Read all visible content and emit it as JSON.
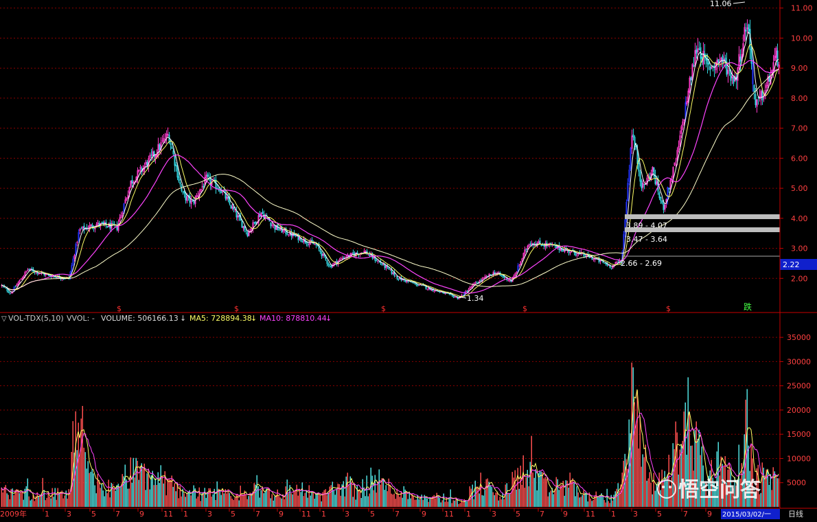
{
  "colors": {
    "background": "#000000",
    "grid": "#8a0000",
    "axis": "#c80000",
    "up": "#ff3ccc",
    "down": "#33d5e0",
    "limit": "#2233ff",
    "ma5": "#ffffff",
    "ma10": "#ffff66",
    "ma20": "#ff44ff",
    "ma60": "#ffffcc",
    "vol_up": "#ff5050",
    "vol_down": "#50e0e0",
    "tick_text": "#ff4040"
  },
  "chart_data": [
    {
      "type": "candlestick",
      "y_ticks": [
        "11.00",
        "10.00",
        "9.00",
        "8.00",
        "7.00",
        "6.00",
        "5.00",
        "4.00",
        "3.00",
        "2.00"
      ],
      "ylim": [
        1,
        11.2
      ],
      "anchors": [
        [
          0,
          1.8
        ],
        [
          15,
          1.5
        ],
        [
          40,
          2.3
        ],
        [
          70,
          2.1
        ],
        [
          100,
          2.0
        ],
        [
          115,
          3.6
        ],
        [
          140,
          3.8
        ],
        [
          170,
          3.7
        ],
        [
          190,
          5.2
        ],
        [
          220,
          6.0
        ],
        [
          245,
          6.8
        ],
        [
          265,
          4.8
        ],
        [
          280,
          4.5
        ],
        [
          300,
          5.3
        ],
        [
          320,
          5.0
        ],
        [
          360,
          3.5
        ],
        [
          380,
          4.2
        ],
        [
          400,
          3.7
        ],
        [
          440,
          3.3
        ],
        [
          460,
          3.1
        ],
        [
          480,
          2.4
        ],
        [
          500,
          2.7
        ],
        [
          530,
          2.9
        ],
        [
          560,
          2.4
        ],
        [
          580,
          2.0
        ],
        [
          620,
          1.7
        ],
        [
          668,
          1.34
        ],
        [
          690,
          1.8
        ],
        [
          720,
          2.2
        ],
        [
          745,
          1.9
        ],
        [
          770,
          3.2
        ],
        [
          800,
          3.1
        ],
        [
          830,
          2.9
        ],
        [
          860,
          2.7
        ],
        [
          890,
          2.4
        ],
        [
          905,
          2.6
        ],
        [
          920,
          6.9
        ],
        [
          935,
          5.0
        ],
        [
          950,
          5.6
        ],
        [
          965,
          4.3
        ],
        [
          985,
          6.0
        ],
        [
          1000,
          8.0
        ],
        [
          1015,
          9.8
        ],
        [
          1030,
          9.0
        ],
        [
          1050,
          9.3
        ],
        [
          1070,
          8.6
        ],
        [
          1088,
          10.6
        ],
        [
          1100,
          7.7
        ],
        [
          1115,
          8.3
        ],
        [
          1130,
          9.4
        ],
        [
          1136,
          9.2
        ]
      ],
      "max_label": "11.06",
      "min_label": "1.34",
      "current_price_label": "2.22",
      "band_labels": [
        "3.89 - 4.07",
        "3.47 - 3.64",
        "2.66 - 2.69"
      ],
      "signal_marks": [
        "$",
        "$",
        "$",
        "$",
        "$"
      ],
      "fall_mark": "跌"
    },
    {
      "type": "bar",
      "indicator": "VOL-TDX(5,10)",
      "vvol_label": "VVOL: -",
      "volume_label": "VOLUME: 506166.13",
      "ma5_label": "MA5: 728894.38",
      "ma10_label": "MA10: 878810.44",
      "y_ticks": [
        "35000",
        "30000",
        "25000",
        "20000",
        "15000",
        "10000",
        "5000"
      ],
      "ylim": [
        0,
        38000
      ],
      "anchors": [
        [
          0,
          3800
        ],
        [
          100,
          3000
        ],
        [
          110,
          22000
        ],
        [
          125,
          9000
        ],
        [
          140,
          6000
        ],
        [
          170,
          3800
        ],
        [
          185,
          8500
        ],
        [
          230,
          7500
        ],
        [
          260,
          4500
        ],
        [
          300,
          3200
        ],
        [
          360,
          2800
        ],
        [
          375,
          5500
        ],
        [
          400,
          3000
        ],
        [
          440,
          4800
        ],
        [
          460,
          2500
        ],
        [
          505,
          6000
        ],
        [
          520,
          4000
        ],
        [
          540,
          6500
        ],
        [
          600,
          3000
        ],
        [
          640,
          2500
        ],
        [
          670,
          1500
        ],
        [
          700,
          6000
        ],
        [
          730,
          2500
        ],
        [
          760,
          9000
        ],
        [
          775,
          8500
        ],
        [
          800,
          4000
        ],
        [
          830,
          6000
        ],
        [
          850,
          3000
        ],
        [
          890,
          2000
        ],
        [
          905,
          5500
        ],
        [
          918,
          28000
        ],
        [
          930,
          18000
        ],
        [
          945,
          7000
        ],
        [
          960,
          6000
        ],
        [
          975,
          10000
        ],
        [
          990,
          18000
        ],
        [
          1000,
          23000
        ],
        [
          1015,
          17000
        ],
        [
          1030,
          6000
        ],
        [
          1050,
          13000
        ],
        [
          1070,
          6500
        ],
        [
          1085,
          16000
        ],
        [
          1100,
          7000
        ],
        [
          1120,
          8000
        ],
        [
          1136,
          6000
        ]
      ]
    }
  ],
  "x_axis": {
    "year_label": "2009年",
    "ticks": [
      {
        "label": "1",
        "x": 63
      },
      {
        "label": "3",
        "x": 95
      },
      {
        "label": "5",
        "x": 131
      },
      {
        "label": "7",
        "x": 166
      },
      {
        "label": "9",
        "x": 201
      },
      {
        "label": "11",
        "x": 236
      },
      {
        "label": "1",
        "x": 265
      },
      {
        "label": "3",
        "x": 300
      },
      {
        "label": "5",
        "x": 334
      },
      {
        "label": "7",
        "x": 370
      },
      {
        "label": "9",
        "x": 404
      },
      {
        "label": "11",
        "x": 437
      },
      {
        "label": "1",
        "x": 466
      },
      {
        "label": "3",
        "x": 500
      },
      {
        "label": "5",
        "x": 537
      },
      {
        "label": "7",
        "x": 573
      },
      {
        "label": "9",
        "x": 612
      },
      {
        "label": "11",
        "x": 645
      },
      {
        "label": "1",
        "x": 677
      },
      {
        "label": "3",
        "x": 714
      },
      {
        "label": "5",
        "x": 749
      },
      {
        "label": "7",
        "x": 784
      },
      {
        "label": "9",
        "x": 818
      },
      {
        "label": "11",
        "x": 851
      },
      {
        "label": "1",
        "x": 888
      },
      {
        "label": "3",
        "x": 920
      },
      {
        "label": "5",
        "x": 955
      },
      {
        "label": "7",
        "x": 993
      },
      {
        "label": "9",
        "x": 1028
      }
    ],
    "date_box": "2015/03/02/一",
    "period": "日线"
  },
  "watermark": "悟空问答"
}
